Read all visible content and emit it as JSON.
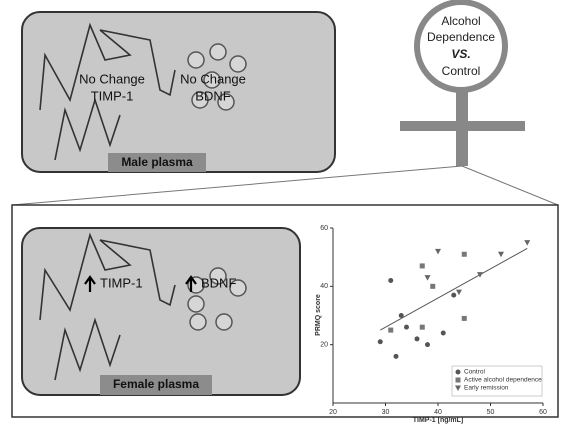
{
  "top_panel": {
    "label": "Male plasma",
    "timp_lines": [
      "No Change",
      "TIMP-1"
    ],
    "bdnf_lines": [
      "No Change",
      "BDNF"
    ]
  },
  "female_symbol": {
    "lines": [
      "Alcohol",
      "Dependence",
      "VS.",
      "Control"
    ]
  },
  "bottom_panel": {
    "label": "Female plasma",
    "timp": "TIMP-1",
    "bdnf": "BDNF"
  },
  "chart_data": {
    "type": "scatter",
    "xlabel": "TIMP-1 [ng/mL]",
    "ylabel": "PRMQ score",
    "xlim": [
      20,
      60
    ],
    "ylim": [
      0,
      60
    ],
    "xticks": [
      20,
      30,
      40,
      50,
      60
    ],
    "yticks": [
      20,
      40,
      60
    ],
    "series": [
      {
        "name": "Control",
        "marker": "circle",
        "color": "#555",
        "x": [
          29,
          31,
          32,
          33,
          34,
          36,
          38,
          41,
          43
        ],
        "values": [
          21,
          42,
          16,
          30,
          26,
          22,
          20,
          24,
          37
        ]
      },
      {
        "name": "Active alcohol dependence",
        "marker": "square",
        "color": "#777",
        "x": [
          31,
          37,
          37,
          39,
          45,
          45
        ],
        "values": [
          25,
          26,
          47,
          40,
          51,
          29
        ]
      },
      {
        "name": "Early remission",
        "marker": "triangle",
        "color": "#666",
        "x": [
          38,
          40,
          44,
          48,
          52,
          57
        ],
        "values": [
          43,
          52,
          38,
          44,
          51,
          55
        ]
      }
    ],
    "trend_line": {
      "x": [
        29,
        57
      ],
      "values": [
        25,
        53
      ]
    }
  }
}
